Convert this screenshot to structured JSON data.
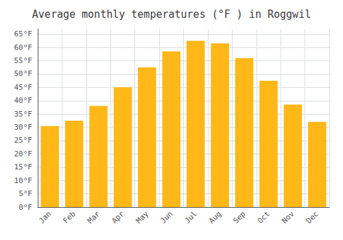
{
  "chart_data": {
    "type": "bar",
    "title": "Average monthly temperatures (°F ) in Roggwil",
    "categories": [
      "Jan",
      "Feb",
      "Mar",
      "Apr",
      "May",
      "Jun",
      "Jul",
      "Aug",
      "Sep",
      "Oct",
      "Nov",
      "Dec"
    ],
    "values": [
      30.5,
      32.5,
      38.0,
      45.0,
      52.5,
      58.5,
      62.5,
      61.5,
      56.0,
      47.5,
      38.5,
      32.0
    ],
    "color": "#FFB818",
    "ylim": [
      0,
      67
    ],
    "yticks": [
      {
        "value": 0,
        "label": "0°F"
      },
      {
        "value": 5,
        "label": "5°F"
      },
      {
        "value": 10,
        "label": "10°F"
      },
      {
        "value": 15,
        "label": "15°F"
      },
      {
        "value": 20,
        "label": "20°F"
      },
      {
        "value": 25,
        "label": "25°F"
      },
      {
        "value": 30,
        "label": "30°F"
      },
      {
        "value": 35,
        "label": "35°F"
      },
      {
        "value": 40,
        "label": "40°F"
      },
      {
        "value": 45,
        "label": "45°F"
      },
      {
        "value": 50,
        "label": "50°F"
      },
      {
        "value": 55,
        "label": "55°F"
      },
      {
        "value": 60,
        "label": "60°F"
      },
      {
        "value": 65,
        "label": "65°F"
      }
    ],
    "grid": true
  }
}
